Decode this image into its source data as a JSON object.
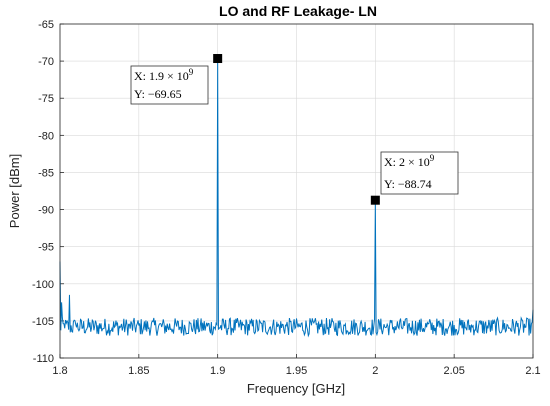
{
  "chart_data": {
    "type": "line",
    "title": "LO and RF Leakage- LN",
    "xlabel": "Frequency [GHz]",
    "ylabel": "Power [dBm]",
    "xlim": [
      1.8,
      2.1
    ],
    "ylim": [
      -110,
      -65
    ],
    "xticks": [
      1.8,
      1.85,
      1.9,
      1.95,
      2.0,
      2.05,
      2.1
    ],
    "xtick_labels": [
      "1.8",
      "1.85",
      "1.9",
      "1.95",
      "2",
      "2.05",
      "2.1"
    ],
    "yticks": [
      -65,
      -70,
      -75,
      -80,
      -85,
      -90,
      -95,
      -100,
      -105,
      -110
    ],
    "ytick_labels": [
      "-65",
      "-70",
      "-75",
      "-80",
      "-85",
      "-90",
      "-95",
      "-100",
      "-105",
      "-110"
    ],
    "grid": true,
    "series": [
      {
        "color": "#0072BD",
        "noise_floor": -105.8,
        "noise_amplitude": 1.2,
        "x": [
          1.8,
          1.801,
          1.803,
          1.806,
          1.81,
          1.9,
          2.0,
          2.1
        ],
        "y": [
          -97,
          -102.5,
          -106,
          -101.5,
          -105.5,
          -69.65,
          -88.74,
          -103.5
        ]
      }
    ],
    "datatips": [
      {
        "x": 1.9,
        "y": -69.65,
        "line1": "X: 1.9 × 10",
        "exp1": "9",
        "line2": "Y: −69.65"
      },
      {
        "x": 2.0,
        "y": -88.74,
        "line1": "X: 2 × 10",
        "exp1": "9",
        "line2": "Y: −88.74"
      }
    ]
  }
}
